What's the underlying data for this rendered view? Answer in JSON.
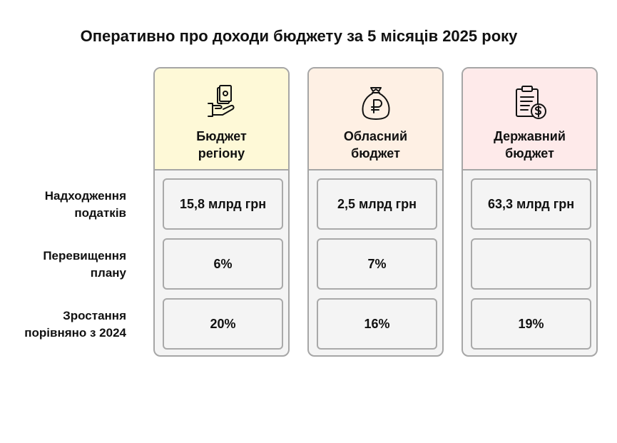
{
  "title": "Оперативно про доходи бюджету за 5 місяців 2025 року",
  "rows": [
    {
      "line1": "Надходження",
      "line2": "податків"
    },
    {
      "line1": "Перевищення",
      "line2": "плану"
    },
    {
      "line1": "Зростання",
      "line2": "порівняно з 2024"
    }
  ],
  "columns": [
    {
      "line1": "Бюджет",
      "line2": "регіону",
      "icon": "hand-money-icon",
      "header_color": "#fef9d7",
      "values": [
        "15,8 млрд грн",
        "6%",
        "20%"
      ]
    },
    {
      "line1": "Обласний",
      "line2": "бюджет",
      "icon": "money-bag-icon",
      "header_color": "#fef0e4",
      "values": [
        "2,5 млрд грн",
        "7%",
        "16%"
      ]
    },
    {
      "line1": "Державний",
      "line2": "бюджет",
      "icon": "clipboard-coin-icon",
      "header_color": "#feeaea",
      "values": [
        "63,3 млрд грн",
        "",
        "19%"
      ]
    }
  ]
}
